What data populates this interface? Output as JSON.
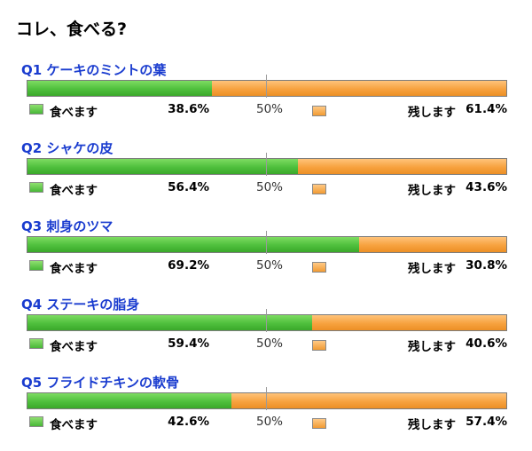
{
  "title": "コレ、食べる?",
  "legend": {
    "eat": "食べます",
    "leave": "残します",
    "mid": "50%"
  },
  "colors": {
    "eat": "#4fbf3d",
    "leave": "#f7a23f",
    "title_blue": "#1a3ccf"
  },
  "chart_data": {
    "type": "bar",
    "title": "コレ、食べる?",
    "categories": [
      "Q1 ケーキのミントの葉",
      "Q2 シャケの皮",
      "Q3 刺身のツマ",
      "Q4 ステーキの脂身",
      "Q5 フライドチキンの軟骨"
    ],
    "series": [
      {
        "name": "食べます",
        "values": [
          38.6,
          56.4,
          69.2,
          59.4,
          42.6
        ]
      },
      {
        "name": "残します",
        "values": [
          61.4,
          43.6,
          30.8,
          40.6,
          57.4
        ]
      }
    ],
    "ylim": [
      0,
      100
    ],
    "stacked": true,
    "orientation": "horizontal"
  },
  "questions": [
    {
      "title": "Q1 ケーキのミントの葉",
      "eat_pct": "38.6%",
      "leave_pct": "61.4%"
    },
    {
      "title": "Q2 シャケの皮",
      "eat_pct": "56.4%",
      "leave_pct": "43.6%"
    },
    {
      "title": "Q3 刺身のツマ",
      "eat_pct": "69.2%",
      "leave_pct": "30.8%"
    },
    {
      "title": "Q4 ステーキの脂身",
      "eat_pct": "59.4%",
      "leave_pct": "40.6%"
    },
    {
      "title": "Q5 フライドチキンの軟骨",
      "eat_pct": "42.6%",
      "leave_pct": "57.4%"
    }
  ]
}
